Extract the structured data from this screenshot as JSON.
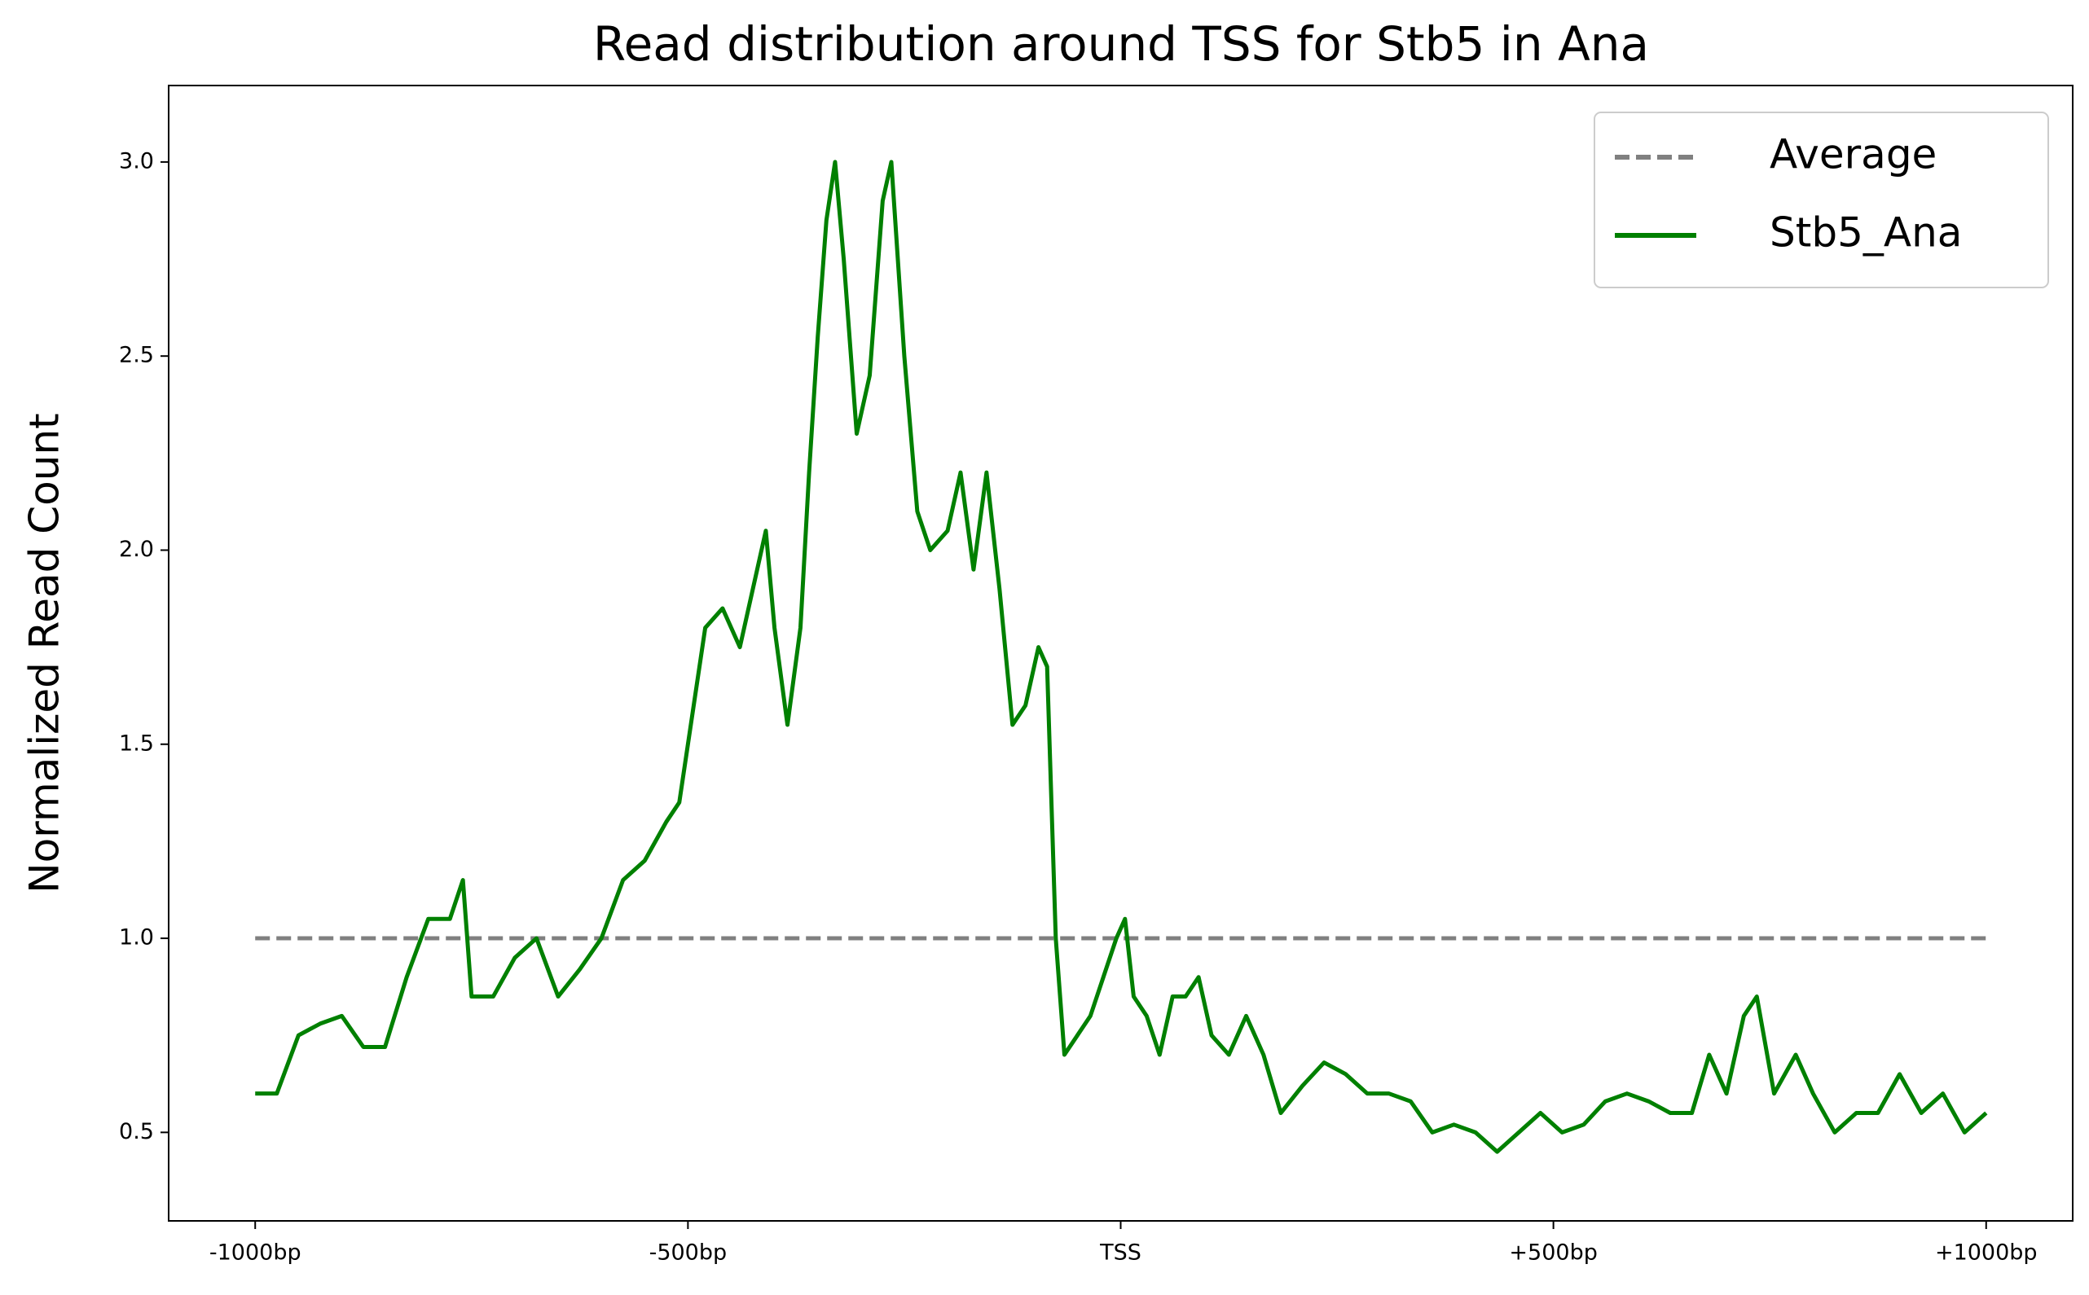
{
  "chart_data": {
    "type": "line",
    "title": "Read distribution around TSS for Stb5 in Ana",
    "y_label": "Normalized Read Count",
    "x": [
      -1000,
      -975,
      -950,
      -925,
      -900,
      -875,
      -850,
      -825,
      -800,
      -775,
      -760,
      -750,
      -725,
      -700,
      -675,
      -650,
      -625,
      -600,
      -575,
      -550,
      -525,
      -510,
      -500,
      -480,
      -460,
      -440,
      -420,
      -410,
      -400,
      -385,
      -370,
      -360,
      -350,
      -340,
      -330,
      -320,
      -305,
      -290,
      -275,
      -265,
      -250,
      -235,
      -220,
      -200,
      -185,
      -170,
      -155,
      -140,
      -125,
      -110,
      -95,
      -85,
      -75,
      -65,
      -50,
      -35,
      -20,
      -5,
      5,
      15,
      30,
      45,
      60,
      75,
      90,
      105,
      125,
      145,
      165,
      185,
      210,
      235,
      260,
      285,
      310,
      335,
      360,
      385,
      410,
      435,
      460,
      485,
      510,
      535,
      560,
      585,
      610,
      635,
      660,
      680,
      700,
      720,
      735,
      755,
      780,
      800,
      825,
      850,
      875,
      900,
      925,
      950,
      975,
      1000
    ],
    "series": [
      {
        "name": "Average",
        "color": "#808080",
        "dashed": true,
        "x": [
          -1000,
          1000
        ],
        "values": [
          1.0,
          1.0
        ]
      },
      {
        "name": "Stb5_Ana",
        "color": "#008000",
        "values": [
          0.6,
          0.6,
          0.75,
          0.78,
          0.8,
          0.72,
          0.72,
          0.9,
          1.05,
          1.05,
          1.15,
          0.85,
          0.85,
          0.95,
          1.0,
          0.85,
          0.92,
          1.0,
          1.15,
          1.2,
          1.3,
          1.35,
          1.5,
          1.8,
          1.85,
          1.75,
          1.95,
          2.05,
          1.8,
          1.55,
          1.8,
          2.2,
          2.55,
          2.85,
          3.0,
          2.75,
          2.3,
          2.45,
          2.9,
          3.0,
          2.5,
          2.1,
          2.0,
          2.05,
          2.2,
          1.95,
          2.2,
          1.9,
          1.55,
          1.6,
          1.75,
          1.7,
          1.0,
          0.7,
          0.75,
          0.8,
          0.9,
          1.0,
          1.05,
          0.85,
          0.8,
          0.7,
          0.85,
          0.85,
          0.9,
          0.75,
          0.7,
          0.8,
          0.7,
          0.55,
          0.62,
          0.68,
          0.65,
          0.6,
          0.6,
          0.58,
          0.5,
          0.52,
          0.5,
          0.45,
          0.5,
          0.55,
          0.5,
          0.52,
          0.58,
          0.6,
          0.58,
          0.55,
          0.55,
          0.7,
          0.6,
          0.8,
          0.85,
          0.6,
          0.7,
          0.6,
          0.5,
          0.55,
          0.55,
          0.65,
          0.55,
          0.6,
          0.5,
          0.55
        ]
      }
    ],
    "xlim": [
      -1100,
      1100
    ],
    "ylim": [
      0.272,
      3.197
    ],
    "xticks": [
      {
        "value": -1000,
        "label": "-1000bp"
      },
      {
        "value": -500,
        "label": "-500bp"
      },
      {
        "value": 0,
        "label": "TSS"
      },
      {
        "value": 500,
        "label": "+500bp"
      },
      {
        "value": 1000,
        "label": "+1000bp"
      }
    ],
    "yticks": [
      0.5,
      {
        "value": 1.0,
        "label": "1.0"
      },
      1.5,
      {
        "value": 2.0,
        "label": "2.0"
      },
      2.5,
      {
        "value": 3.0,
        "label": "3.0"
      }
    ],
    "grid": false,
    "legend": "upper right"
  }
}
